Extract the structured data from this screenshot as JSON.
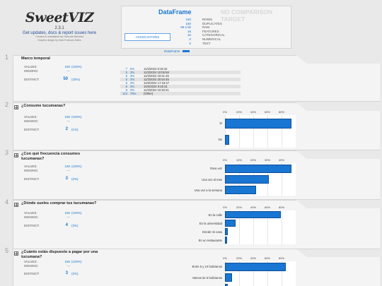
{
  "header": {
    "logo": "SweetVIZ",
    "version": "2.3.1",
    "link": "Get updates, docs & report issues here",
    "credit1": "Created & maintained by Francois Bertrand",
    "credit2": "Graphic design by Jean-Francois Hains"
  },
  "dataframe": {
    "title": "DataFrame",
    "no_target": "NO COMPARISON TARGET",
    "associations_label": "ASSOCIATIONS",
    "legend": "DataFrame",
    "stats": [
      {
        "value": "150",
        "label": "ROWS"
      },
      {
        "value": "150",
        "label": "DUPLICATES"
      },
      {
        "value": "96.2 kb",
        "label": "RAM"
      },
      {
        "value": "16",
        "label": "FEATURES"
      },
      {
        "value": "16",
        "label": "CATEGORICAL"
      },
      {
        "value": "0",
        "label": "NUMERICAL"
      },
      {
        "value": "0",
        "label": "TEXT"
      }
    ],
    "accent": "#1976d2"
  },
  "labels": {
    "values": "VALUES:",
    "missing": "MISSING:",
    "distinct": "DISTINCT:"
  },
  "features": [
    {
      "num": "1",
      "name": "Marco temporal",
      "icon": "text-icon",
      "values": "150",
      "values_pct": "(100%)",
      "missing": "---",
      "distinct": "50",
      "distinct_pct": "(33%)",
      "freq": [
        {
          "c": "7",
          "p": "5%",
          "v": "11/3/2024 9:19:42"
        },
        {
          "c": "5",
          "p": "3%",
          "v": "11/3/2024 10:05:58"
        },
        {
          "c": "5",
          "p": "3%",
          "v": "11/3/2024 19:31:46"
        },
        {
          "c": "5",
          "p": "3%",
          "v": "11/3/2024 20:54:45"
        },
        {
          "c": "5",
          "p": "3%",
          "v": "10/3/2024 17:23:47"
        },
        {
          "c": "5",
          "p": "3%",
          "v": "10/3/2024 9:25:31"
        },
        {
          "c": "5",
          "p": "3%",
          "v": "11/3/2024 10:30:31"
        },
        {
          "c": "113",
          "p": "75%",
          "v": "(Other)"
        }
      ]
    },
    {
      "num": "2",
      "name": "¿Consume tucumanas?",
      "icon": "categorical-icon",
      "values": "150",
      "values_pct": "(100%)",
      "missing": "---",
      "distinct": "2",
      "distinct_pct": "(1%)",
      "chart": {
        "max": 100,
        "ticks": [
          "0%",
          "20%",
          "40%",
          "60%",
          "80%"
        ],
        "tick_vals": [
          0,
          20,
          40,
          60,
          80
        ],
        "cats": [
          "Si",
          "No"
        ],
        "vals": [
          94,
          6
        ]
      }
    },
    {
      "num": "3",
      "name": "¿Con qué frecuencia consumes tucumanas?",
      "icon": "categorical-icon",
      "values": "150",
      "values_pct": "(100%)",
      "missing": "---",
      "distinct": "3",
      "distinct_pct": "(2%)",
      "chart": {
        "max": 50,
        "ticks": [
          "0%",
          "10%",
          "20%",
          "30%",
          "40%"
        ],
        "tick_vals": [
          0,
          10,
          20,
          30,
          40
        ],
        "cats": [
          "Rara vez",
          "Una vez al mes",
          "Una vez a la semana"
        ],
        "vals": [
          47,
          31,
          22
        ]
      }
    },
    {
      "num": "4",
      "name": "¿Dónde sueles comprar tus tucumanas?",
      "icon": "categorical-icon",
      "values": "150",
      "values_pct": "(100%)",
      "missing": "---",
      "distinct": "4",
      "distinct_pct": "(3%)",
      "chart": {
        "max": 100,
        "ticks": [
          "0%",
          "20%",
          "40%",
          "60%",
          "80%"
        ],
        "tick_vals": [
          0,
          20,
          40,
          60,
          80
        ],
        "cats": [
          "En la calle",
          "En la universidad",
          "Donde mi casa",
          "En un restaurante"
        ],
        "vals": [
          79,
          15,
          4,
          3
        ]
      }
    },
    {
      "num": "5",
      "name": "¿Cuánto estás dispuesto a pagar por una tucumana?",
      "icon": "categorical-icon",
      "values": "150",
      "values_pct": "(100%)",
      "missing": "---",
      "distinct": "3",
      "distinct_pct": "(2%)",
      "chart": {
        "max": 100,
        "ticks": [
          "0%",
          "20%",
          "40%",
          "60%",
          "80%"
        ],
        "tick_vals": [
          0,
          20,
          40,
          60,
          80
        ],
        "cats": [
          "Entre 5 y 10 bolivianos",
          "Menos de 5 bolivianos",
          "Entre 10 y 15 bolivianos"
        ],
        "vals": [
          86,
          10,
          4
        ]
      }
    }
  ]
}
